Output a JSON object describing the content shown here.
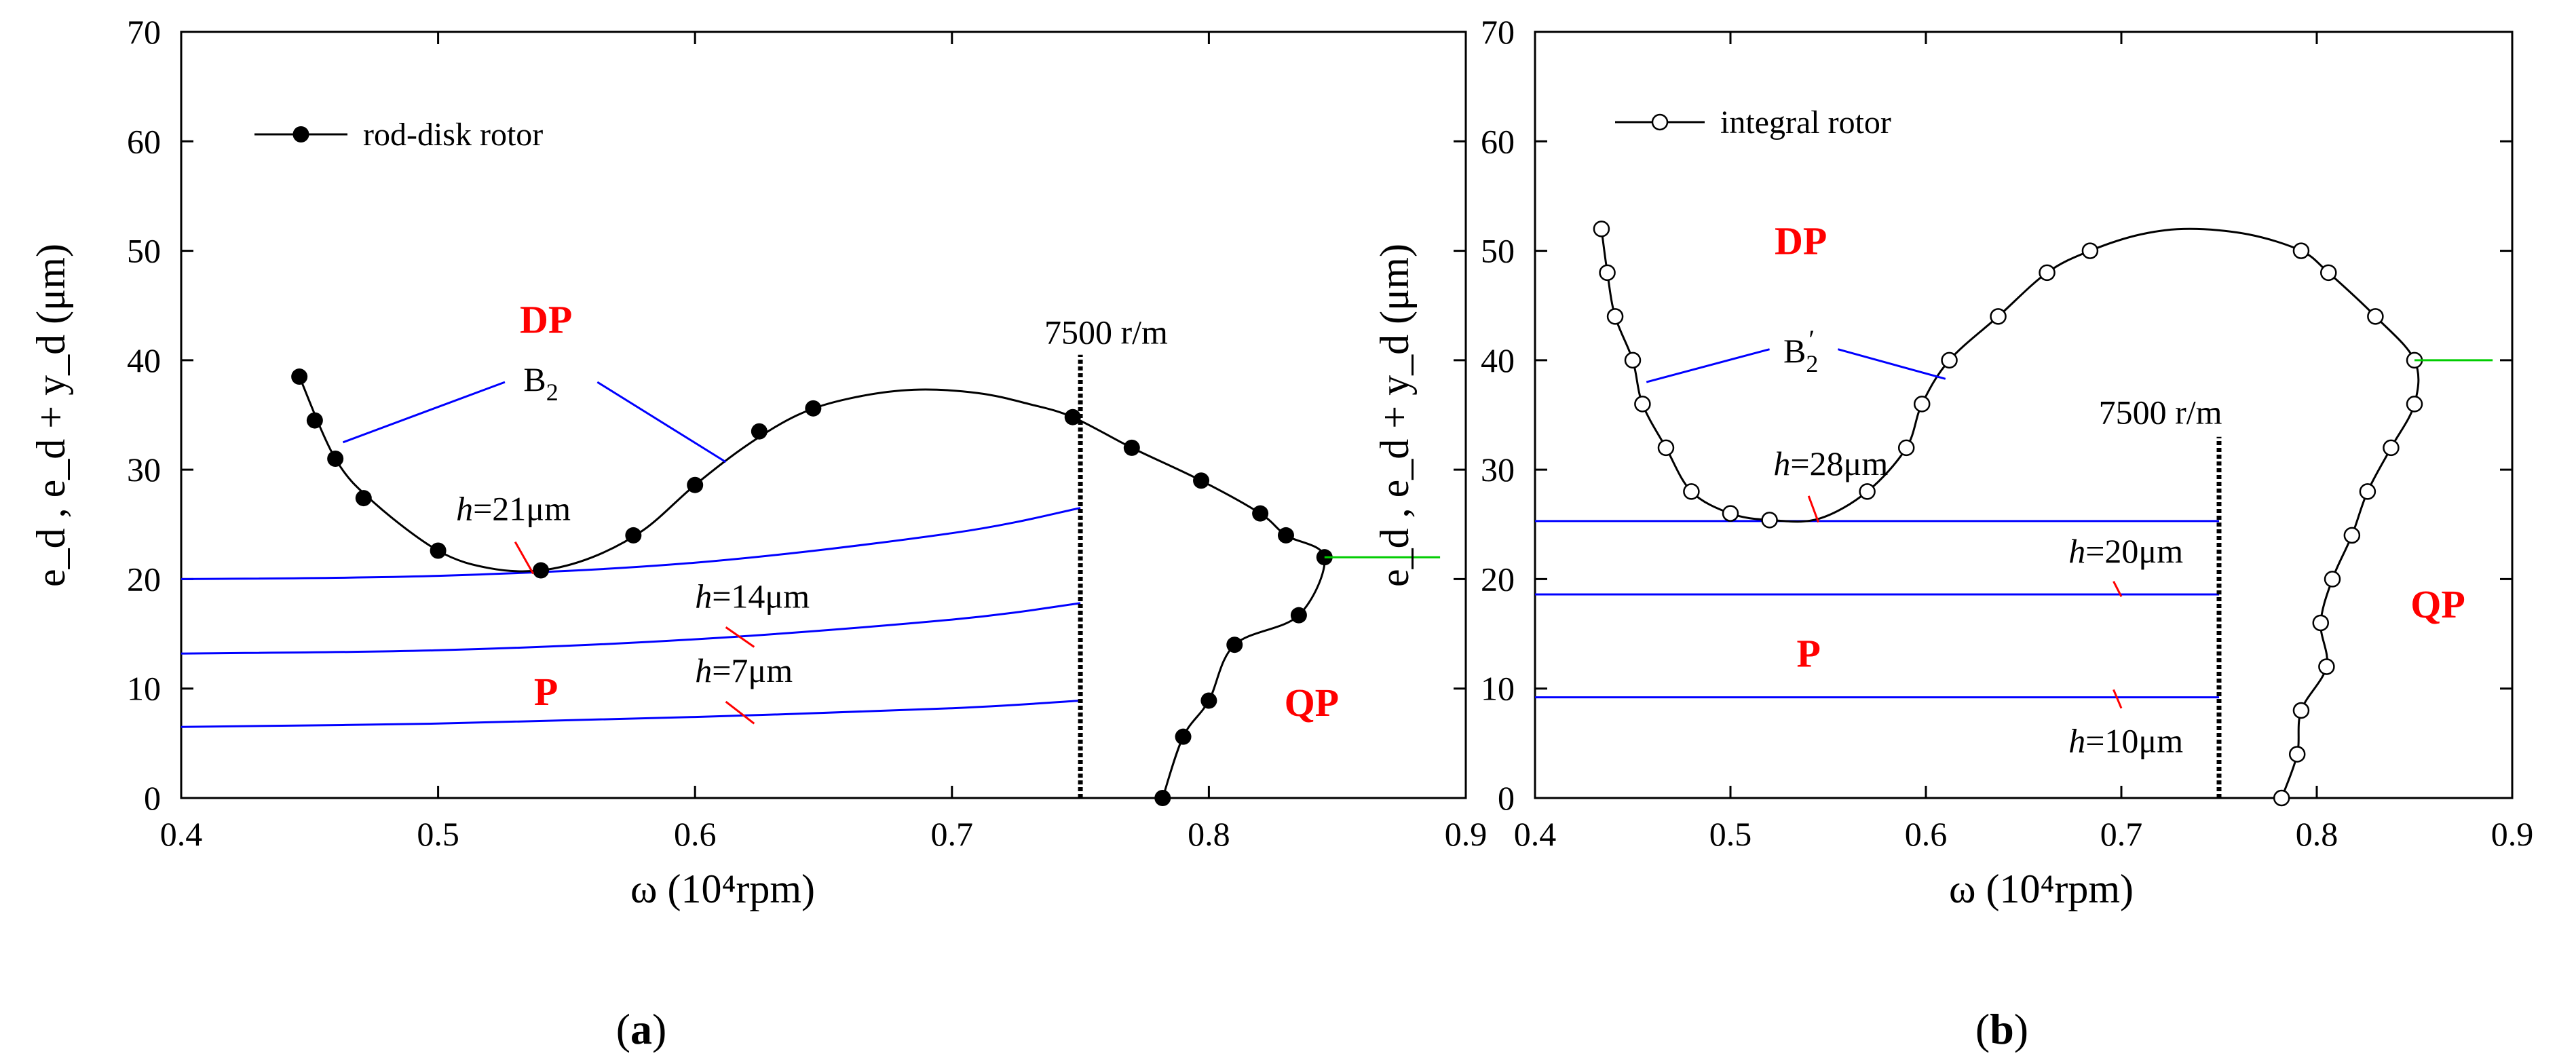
{
  "chart_data": [
    {
      "type": "line",
      "panel_label": "a",
      "xlabel": "ω (10⁴rpm)",
      "ylabel": "e_d , e_d + y_d (μm)",
      "xlim": [
        0.4,
        0.9
      ],
      "ylim": [
        0,
        70
      ],
      "x_ticks": [
        0.4,
        0.5,
        0.6,
        0.7,
        0.8,
        0.9
      ],
      "y_ticks": [
        0,
        10,
        20,
        30,
        40,
        50,
        60,
        70
      ],
      "x_tick_labels": [
        "0.4",
        "0.5",
        "0.6",
        "0.7",
        "0.8",
        "0.9"
      ],
      "y_tick_labels": [
        "0",
        "10",
        "20",
        "30",
        "40",
        "50",
        "60",
        "70"
      ],
      "colors": {
        "series": "#000000",
        "boundary": "#0000ff",
        "region_label": "#ff0000",
        "tail": "#00cc00",
        "h_marker": "#ff0000"
      },
      "legend": {
        "label": "rod-disk rotor",
        "marker": "filled-circle",
        "placement": "top-left"
      },
      "series": [
        {
          "name": "rod-disk rotor",
          "marker": "filled-circle",
          "points": [
            [
              0.446,
              38.5
            ],
            [
              0.452,
              34.5
            ],
            [
              0.46,
              31
            ],
            [
              0.471,
              27.4
            ],
            [
              0.5,
              22.6
            ],
            [
              0.54,
              20.8
            ],
            [
              0.576,
              24
            ],
            [
              0.6,
              28.6
            ],
            [
              0.625,
              33.5
            ],
            [
              0.646,
              35.6
            ],
            [
              0.747,
              34.8
            ],
            [
              0.77,
              32
            ],
            [
              0.797,
              29
            ],
            [
              0.82,
              26
            ],
            [
              0.83,
              24
            ],
            [
              0.845,
              22
            ],
            [
              0.835,
              16.7
            ],
            [
              0.81,
              14
            ],
            [
              0.8,
              8.9
            ],
            [
              0.79,
              5.6
            ],
            [
              0.782,
              0
            ]
          ],
          "curve": [
            [
              0.446,
              38.5
            ],
            [
              0.46,
              31
            ],
            [
              0.475,
              27
            ],
            [
              0.5,
              22.6
            ],
            [
              0.52,
              21
            ],
            [
              0.54,
              20.8
            ],
            [
              0.56,
              22
            ],
            [
              0.58,
              24.5
            ],
            [
              0.6,
              28.6
            ],
            [
              0.62,
              32.2
            ],
            [
              0.64,
              35
            ],
            [
              0.66,
              36.5
            ],
            [
              0.685,
              37.3
            ],
            [
              0.71,
              37
            ],
            [
              0.73,
              36
            ],
            [
              0.747,
              34.8
            ],
            [
              0.77,
              32
            ],
            [
              0.797,
              29
            ],
            [
              0.82,
              26
            ],
            [
              0.83,
              24
            ],
            [
              0.845,
              22
            ],
            [
              0.835,
              16.7
            ],
            [
              0.81,
              14
            ],
            [
              0.8,
              8.9
            ],
            [
              0.79,
              5.6
            ],
            [
              0.782,
              0
            ]
          ],
          "tail": [
            [
              0.845,
              22
            ],
            [
              0.89,
              22
            ]
          ]
        }
      ],
      "boundaries": [
        {
          "label": "h=21μm",
          "points": [
            [
              0.4,
              20
            ],
            [
              0.5,
              20.3
            ],
            [
              0.6,
              21.5
            ],
            [
              0.7,
              24.2
            ],
            [
              0.75,
              26.5
            ]
          ]
        },
        {
          "label": "h=14μm",
          "points": [
            [
              0.4,
              13.2
            ],
            [
              0.5,
              13.5
            ],
            [
              0.6,
              14.5
            ],
            [
              0.7,
              16.3
            ],
            [
              0.75,
              17.8
            ]
          ]
        },
        {
          "label": "h=7μm",
          "points": [
            [
              0.4,
              6.5
            ],
            [
              0.5,
              6.8
            ],
            [
              0.6,
              7.4
            ],
            [
              0.7,
              8.2
            ],
            [
              0.75,
              8.9
            ]
          ]
        }
      ],
      "h_labels": [
        {
          "text": "h",
          "suffix": "=21μm",
          "x": 0.507,
          "y": 25.4,
          "marker": [
            [
              0.53,
              23.4
            ],
            [
              0.537,
              20.5
            ]
          ]
        },
        {
          "text": "h",
          "suffix": "=14μm",
          "x": 0.6,
          "y": 17.4,
          "marker": [
            [
              0.612,
              15.6
            ],
            [
              0.623,
              13.8
            ]
          ]
        },
        {
          "text": "h",
          "suffix": "=7μm",
          "x": 0.6,
          "y": 10.6,
          "marker": [
            [
              0.612,
              8.8
            ],
            [
              0.623,
              6.8
            ]
          ]
        }
      ],
      "region_labels": [
        {
          "text": "DP",
          "x": 0.542,
          "y": 42.5
        },
        {
          "text": "P",
          "x": 0.542,
          "y": 8.5
        },
        {
          "text": "QP",
          "x": 0.84,
          "y": 7.5
        }
      ],
      "speed_line": {
        "x": 0.75,
        "y_range": [
          0,
          40.5
        ],
        "label": "7500 r/m",
        "label_x": 0.76,
        "label_y": 41.5
      },
      "b_label": {
        "text": "B",
        "sub": "2",
        "prime": "",
        "x": 0.54,
        "y": 37.2,
        "pointers": [
          [
            [
              0.526,
              38
            ],
            [
              0.463,
              32.5
            ]
          ],
          [
            [
              0.562,
              38
            ],
            [
              0.612,
              30.7
            ]
          ]
        ]
      }
    },
    {
      "type": "line",
      "panel_label": "b",
      "xlabel": "ω (10⁴rpm)",
      "ylabel": "e_d , e_d + y_d (μm)",
      "xlim": [
        0.4,
        0.9
      ],
      "ylim": [
        0,
        70
      ],
      "x_ticks": [
        0.4,
        0.5,
        0.6,
        0.7,
        0.8,
        0.9
      ],
      "y_ticks": [
        0,
        10,
        20,
        30,
        40,
        50,
        60,
        70
      ],
      "x_tick_labels": [
        "0.4",
        "0.5",
        "0.6",
        "0.7",
        "0.8",
        "0.9"
      ],
      "y_tick_labels": [
        "0",
        "10",
        "20",
        "30",
        "40",
        "50",
        "60",
        "70"
      ],
      "colors": {
        "series": "#000000",
        "boundary": "#0000ff",
        "region_label": "#ff0000",
        "tail": "#00cc00",
        "h_marker": "#ff0000"
      },
      "legend": {
        "label": "integral rotor",
        "marker": "open-circle",
        "placement": "top-left"
      },
      "series": [
        {
          "name": "integral rotor",
          "marker": "open-circle",
          "points": [
            [
              0.434,
              52
            ],
            [
              0.437,
              48
            ],
            [
              0.441,
              44
            ],
            [
              0.45,
              40
            ],
            [
              0.455,
              36
            ],
            [
              0.467,
              32
            ],
            [
              0.48,
              28
            ],
            [
              0.5,
              26
            ],
            [
              0.52,
              25.4
            ],
            [
              0.57,
              28
            ],
            [
              0.59,
              32
            ],
            [
              0.598,
              36
            ],
            [
              0.612,
              40
            ],
            [
              0.637,
              44
            ],
            [
              0.662,
              48
            ],
            [
              0.684,
              50
            ],
            [
              0.792,
              50
            ],
            [
              0.806,
              48
            ],
            [
              0.83,
              44
            ],
            [
              0.85,
              40
            ],
            [
              0.85,
              36
            ],
            [
              0.838,
              32
            ],
            [
              0.826,
              28
            ],
            [
              0.818,
              24
            ],
            [
              0.808,
              20
            ],
            [
              0.802,
              16
            ],
            [
              0.805,
              12
            ],
            [
              0.792,
              8
            ],
            [
              0.79,
              4
            ],
            [
              0.782,
              0
            ]
          ],
          "curve": [
            [
              0.434,
              52
            ],
            [
              0.437,
              48
            ],
            [
              0.441,
              44
            ],
            [
              0.45,
              40
            ],
            [
              0.455,
              36
            ],
            [
              0.467,
              32
            ],
            [
              0.48,
              28
            ],
            [
              0.5,
              26
            ],
            [
              0.52,
              25.4
            ],
            [
              0.545,
              25.5
            ],
            [
              0.57,
              28
            ],
            [
              0.59,
              32
            ],
            [
              0.598,
              36
            ],
            [
              0.612,
              40
            ],
            [
              0.637,
              44
            ],
            [
              0.662,
              48
            ],
            [
              0.684,
              50
            ],
            [
              0.71,
              51.5
            ],
            [
              0.735,
              52
            ],
            [
              0.765,
              51.5
            ],
            [
              0.792,
              50
            ],
            [
              0.806,
              48
            ],
            [
              0.83,
              44
            ],
            [
              0.85,
              40
            ],
            [
              0.85,
              36
            ],
            [
              0.838,
              32
            ],
            [
              0.826,
              28
            ],
            [
              0.818,
              24
            ],
            [
              0.808,
              20
            ],
            [
              0.802,
              16
            ],
            [
              0.805,
              12
            ],
            [
              0.792,
              8
            ],
            [
              0.79,
              4
            ],
            [
              0.782,
              0
            ]
          ],
          "tail": [
            [
              0.85,
              40
            ],
            [
              0.89,
              40
            ]
          ]
        }
      ],
      "boundaries": [
        {
          "label": "h=28μm",
          "points": [
            [
              0.4,
              25.3
            ],
            [
              0.75,
              25.3
            ]
          ]
        },
        {
          "label": "h=20μm",
          "points": [
            [
              0.4,
              18.6
            ],
            [
              0.75,
              18.6
            ]
          ]
        },
        {
          "label": "h=10μm",
          "points": [
            [
              0.4,
              9.2
            ],
            [
              0.75,
              9.2
            ]
          ]
        }
      ],
      "h_labels": [
        {
          "text": "h",
          "suffix": "=28μm",
          "x": 0.522,
          "y": 29.5,
          "marker": [
            [
              0.54,
              27.6
            ],
            [
              0.545,
              25.2
            ]
          ]
        },
        {
          "text": "h",
          "suffix": "=20μm",
          "x": 0.673,
          "y": 21.5,
          "marker": [
            [
              0.696,
              19.8
            ],
            [
              0.7,
              18.4
            ]
          ]
        },
        {
          "text": "h",
          "suffix": "=10μm",
          "x": 0.673,
          "y": 4.2,
          "marker": [
            [
              0.696,
              9.9
            ],
            [
              0.7,
              8.2
            ]
          ]
        }
      ],
      "region_labels": [
        {
          "text": "DP",
          "x": 0.536,
          "y": 49.7
        },
        {
          "text": "P",
          "x": 0.54,
          "y": 12
        },
        {
          "text": "QP",
          "x": 0.862,
          "y": 16.5
        }
      ],
      "speed_line": {
        "x": 0.75,
        "y_range": [
          0,
          33
        ],
        "label": "7500 r/m",
        "label_x": 0.72,
        "label_y": 34.2
      },
      "b_label": {
        "text": "B",
        "sub": "2",
        "prime": "′",
        "x": 0.536,
        "y": 39.8,
        "pointers": [
          [
            [
              0.52,
              41
            ],
            [
              0.457,
              38
            ]
          ],
          [
            [
              0.555,
              41
            ],
            [
              0.61,
              38.3
            ]
          ]
        ]
      }
    }
  ]
}
